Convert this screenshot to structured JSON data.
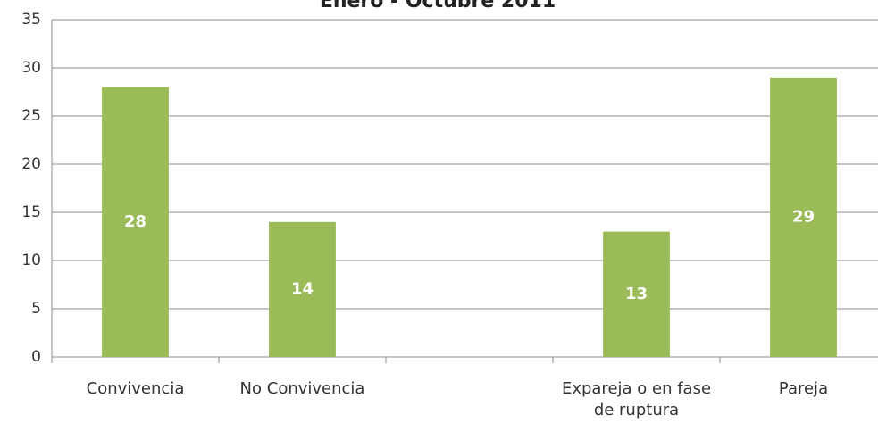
{
  "chart_data": {
    "type": "bar",
    "title": "Enero - Octubre 2011",
    "categories": [
      "Convivencia",
      "No Convivencia",
      null,
      "Expareja o en fase de ruptura",
      "Pareja"
    ],
    "values": [
      28,
      14,
      null,
      13,
      29
    ],
    "color": "#9bbb59",
    "ylim": [
      0,
      35
    ],
    "yticks": [
      0,
      5,
      10,
      15,
      20,
      25,
      30,
      35
    ],
    "grid": true
  }
}
